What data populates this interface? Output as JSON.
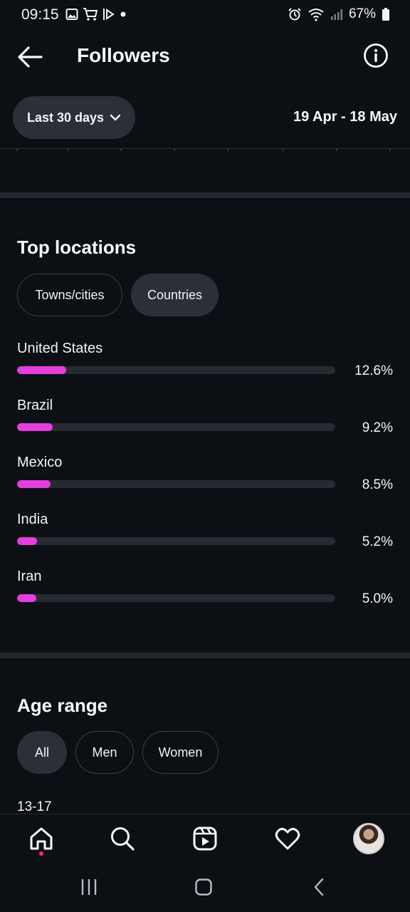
{
  "status_bar": {
    "time": "09:15",
    "battery": "67%",
    "icons_left": [
      "gallery-icon",
      "cart-icon",
      "media-icon",
      "dot-icon"
    ],
    "icons_right": [
      "alarm-icon",
      "wifi-icon",
      "signal-icon",
      "battery-icon"
    ]
  },
  "header": {
    "title": "Followers",
    "back_icon": "arrow-left-icon",
    "info_icon": "info-icon"
  },
  "date_filter": {
    "range_label": "Last 30 days",
    "date_range": "19 Apr - 18 May"
  },
  "top_locations": {
    "title": "Top locations",
    "tabs": [
      {
        "label": "Towns/cities",
        "selected": false
      },
      {
        "label": "Countries",
        "selected": true
      }
    ],
    "accent_color": "#e33fdc",
    "items": [
      {
        "name": "United States",
        "percent_label": "12.6%",
        "bar_fraction": 0.126
      },
      {
        "name": "Brazil",
        "percent_label": "9.2%",
        "bar_fraction": 0.092
      },
      {
        "name": "Mexico",
        "percent_label": "8.5%",
        "bar_fraction": 0.085
      },
      {
        "name": "India",
        "percent_label": "5.2%",
        "bar_fraction": 0.052
      },
      {
        "name": "Iran",
        "percent_label": "5.0%",
        "bar_fraction": 0.05
      }
    ]
  },
  "age_range": {
    "title": "Age range",
    "tabs": [
      {
        "label": "All",
        "selected": true
      },
      {
        "label": "Men",
        "selected": false
      },
      {
        "label": "Women",
        "selected": false
      }
    ],
    "first_bucket": "13-17"
  },
  "bottom_nav": {
    "items": [
      "home-icon",
      "search-icon",
      "reels-icon",
      "heart-icon",
      "profile-avatar"
    ]
  }
}
